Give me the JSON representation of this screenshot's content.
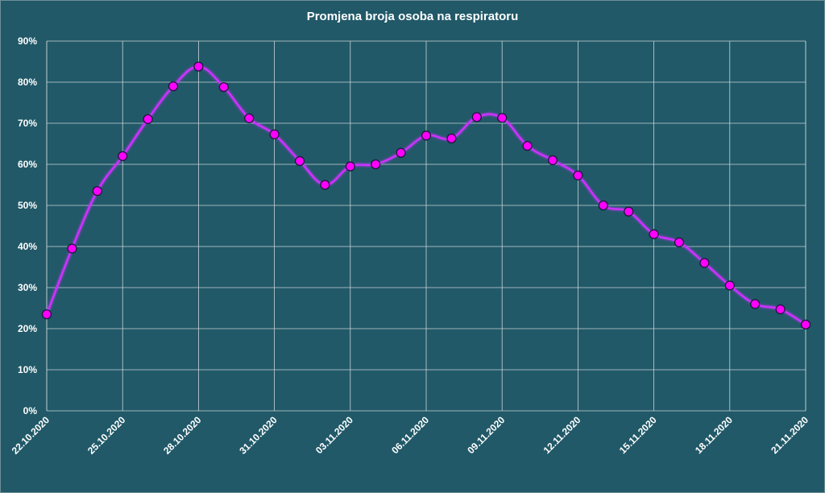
{
  "colors": {
    "background": "#215968",
    "grid": "#c8d3d6",
    "line": "#cc33ff",
    "marker_fill": "#ff00ff",
    "marker_edge": "#1a1a3a",
    "text": "#ffffff"
  },
  "chart_data": {
    "type": "line",
    "title": "Promjena broja osoba na respiratoru",
    "xlabel": "",
    "ylabel": "",
    "ylim": [
      0,
      90
    ],
    "y_ticks": [
      "0%",
      "10%",
      "20%",
      "30%",
      "40%",
      "50%",
      "60%",
      "70%",
      "80%",
      "90%"
    ],
    "grid": true,
    "x_tick_labels": [
      "22.10.2020",
      "25.10.2020",
      "28.10.2020",
      "31.10.2020",
      "03.11.2020",
      "06.11.2020",
      "09.11.2020",
      "12.11.2020",
      "15.11.2020",
      "18.11.2020",
      "21.11.2020"
    ],
    "x": [
      "22.10.2020",
      "23.10.2020",
      "24.10.2020",
      "25.10.2020",
      "26.10.2020",
      "27.10.2020",
      "28.10.2020",
      "29.10.2020",
      "30.10.2020",
      "31.10.2020",
      "01.11.2020",
      "02.11.2020",
      "03.11.2020",
      "04.11.2020",
      "05.11.2020",
      "06.11.2020",
      "07.11.2020",
      "08.11.2020",
      "09.11.2020",
      "10.11.2020",
      "11.11.2020",
      "12.11.2020",
      "13.11.2020",
      "14.11.2020",
      "15.11.2020",
      "16.11.2020",
      "17.11.2020",
      "18.11.2020",
      "19.11.2020",
      "20.11.2020",
      "21.11.2020"
    ],
    "series": [
      {
        "values": [
          23.5,
          39.5,
          53.5,
          62.0,
          71.0,
          79.0,
          83.8,
          78.8,
          71.2,
          67.3,
          60.8,
          55.0,
          59.5,
          60.0,
          62.8,
          67.0,
          66.3,
          71.5,
          71.3,
          64.5,
          61.0,
          57.3,
          50.0,
          48.5,
          43.0,
          41.0,
          36.0,
          30.5,
          26.0,
          24.7,
          21.0
        ]
      }
    ]
  }
}
